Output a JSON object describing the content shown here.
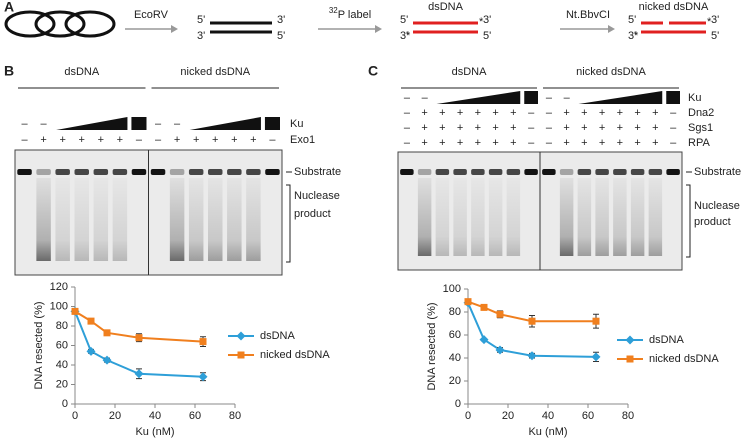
{
  "panel_a": {
    "label": "A",
    "ends": [
      "5'",
      "3'",
      "3'",
      "5'"
    ],
    "steps": [
      "EcoRV",
      {
        "sup": "32",
        "text": "P label"
      },
      "Nt.BbvCI"
    ],
    "products": [
      "dsDNA",
      "nicked dsDNA"
    ]
  },
  "gels": [
    {
      "label": "B",
      "groups": [
        "dsDNA",
        "nicked dsDNA"
      ],
      "rows": [
        {
          "name": "Ku",
          "signs": [
            "–",
            "–"
          ]
        },
        {
          "name": "Exo1",
          "signs": [
            "–",
            "+",
            "+",
            "+",
            "+",
            "+",
            "–"
          ]
        }
      ],
      "substrate": "Substrate",
      "product": [
        "Nuclease",
        "product"
      ]
    },
    {
      "label": "C",
      "groups": [
        "dsDNA",
        "nicked dsDNA"
      ],
      "rows": [
        {
          "name": "Ku",
          "signs": [
            "–",
            "–"
          ]
        },
        {
          "name": "Dna2",
          "signs": [
            "–",
            "+",
            "+",
            "+",
            "+",
            "+",
            "+",
            "–"
          ]
        },
        {
          "name": "Sgs1",
          "signs": [
            "–",
            "+",
            "+",
            "+",
            "+",
            "+",
            "+",
            "–"
          ]
        },
        {
          "name": "RPA",
          "signs": [
            "–",
            "+",
            "+",
            "+",
            "+",
            "+",
            "+",
            "–"
          ]
        }
      ],
      "substrate": "Substrate",
      "product": [
        "Nuclease",
        "product"
      ]
    }
  ],
  "chart_data": [
    {
      "type": "line",
      "xlabel": "Ku (nM)",
      "ylabel": "DNA resected (%)",
      "x": [
        0,
        8,
        16,
        32,
        64
      ],
      "xlim": [
        0,
        80
      ],
      "xticks": [
        0,
        20,
        40,
        60,
        80
      ],
      "ylim": [
        0,
        120
      ],
      "yticks": [
        0,
        20,
        40,
        60,
        80,
        100,
        120
      ],
      "legend": "right",
      "series": [
        {
          "name": "dsDNA",
          "color": "#2e9fd8",
          "marker": "diamond",
          "values": [
            95,
            54,
            45,
            31,
            28
          ],
          "errors": [
            0,
            2,
            2,
            5,
            4
          ]
        },
        {
          "name": "nicked dsDNA",
          "color": "#f07f1e",
          "marker": "square",
          "values": [
            95,
            85,
            73,
            68,
            64
          ],
          "errors": [
            0,
            2,
            2,
            4,
            5
          ]
        }
      ]
    },
    {
      "type": "line",
      "xlabel": "Ku (nM)",
      "ylabel": "DNA resected (%)",
      "x": [
        0,
        8,
        16,
        32,
        64
      ],
      "xlim": [
        0,
        80
      ],
      "xticks": [
        0,
        20,
        40,
        60,
        80
      ],
      "ylim": [
        0,
        100
      ],
      "yticks": [
        0,
        20,
        40,
        60,
        80,
        100
      ],
      "legend": "right",
      "series": [
        {
          "name": "dsDNA",
          "color": "#2e9fd8",
          "marker": "diamond",
          "values": [
            88,
            56,
            47,
            42,
            41
          ],
          "errors": [
            0,
            1,
            2,
            2,
            4
          ]
        },
        {
          "name": "nicked dsDNA",
          "color": "#f07f1e",
          "marker": "square",
          "values": [
            89,
            84,
            78,
            72,
            72
          ],
          "errors": [
            0,
            2,
            3,
            5,
            6
          ]
        }
      ]
    }
  ]
}
